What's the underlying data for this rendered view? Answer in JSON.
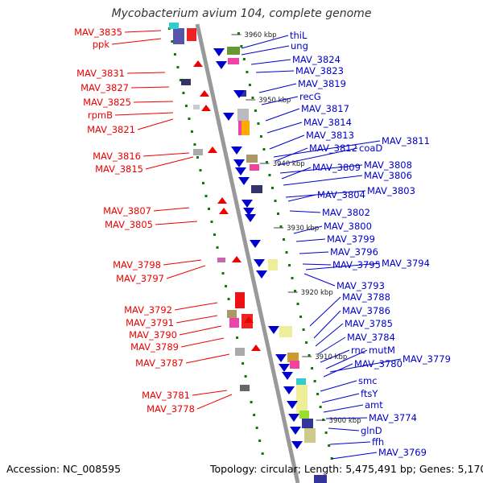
{
  "title": "Mycobacterium avium 104, complete genome",
  "footer": {
    "accession": "Accession: NC_008595",
    "topology": "Topology: circular; Length: 5,475,491 bp; Genes: 5,170"
  },
  "colors": {
    "forward": "#ee0000",
    "reverse": "#0000cc",
    "axis": "#999999",
    "tick": "#008000"
  },
  "kbp_marks": [
    "3960 kbp",
    "3950 kbp",
    "3940 kbp",
    "3930 kbp",
    "3920 kbp",
    "3910 kbp",
    "3900 kbp"
  ],
  "genes_left": [
    "MAV_3835",
    "ppk",
    "MAV_3831",
    "MAV_3827",
    "MAV_3825",
    "rpmB",
    "MAV_3821",
    "MAV_3816",
    "MAV_3815",
    "MAV_3807",
    "MAV_3805",
    "MAV_3798",
    "MAV_3797",
    "MAV_3792",
    "MAV_3791",
    "MAV_3790",
    "MAV_3789",
    "MAV_3787",
    "MAV_3781",
    "MAV_3778"
  ],
  "genes_right": [
    "thiL",
    "ung",
    "MAV_3824",
    "MAV_3823",
    "MAV_3819",
    "recG",
    "MAV_3817",
    "MAV_3814",
    "MAV_3813",
    "MAV_3811",
    "MAV_3812",
    "coaD",
    "MAV_3808",
    "MAV_3809",
    "MAV_3806",
    "MAV_3803",
    "MAV_3804",
    "MAV_3802",
    "MAV_3800",
    "MAV_3799",
    "MAV_3796",
    "MAV_3794",
    "MAV_3795",
    "MAV_3793",
    "MAV_3788",
    "MAV_3786",
    "MAV_3785",
    "MAV_3784",
    "rnc",
    "mutM",
    "MAV_3779",
    "MAV_3780",
    "smc",
    "ftsY",
    "amt",
    "MAV_3774",
    "glnD",
    "ffh",
    "MAV_3769"
  ]
}
